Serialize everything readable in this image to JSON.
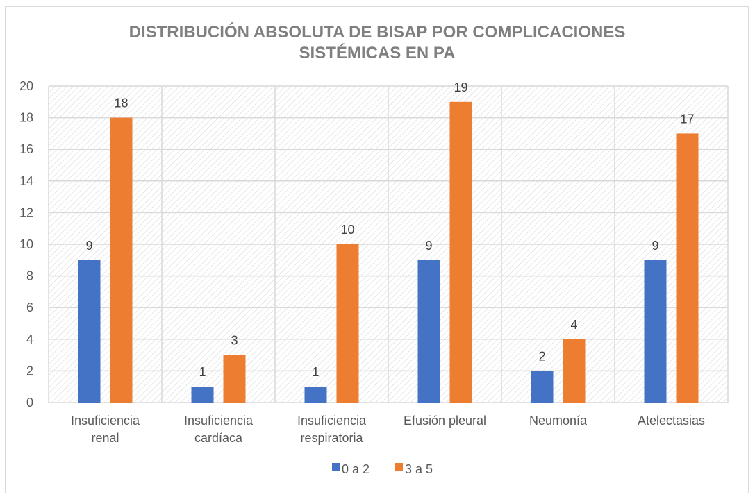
{
  "chart_data": {
    "type": "bar",
    "title": "DISTRIBUCIÓN ABSOLUTA DE BISAP POR COMPLICACIONES SISTÉMICAS EN PA",
    "title_lines": [
      "DISTRIBUCIÓN ABSOLUTA DE BISAP POR COMPLICACIONES",
      "SISTÉMICAS EN PA"
    ],
    "xlabel": "",
    "ylabel": "",
    "categories": [
      [
        "Insuficiencia",
        "renal"
      ],
      [
        "Insuficiencia",
        "cardíaca"
      ],
      [
        "Insuficiencia",
        "respiratoria"
      ],
      [
        "Efusión pleural"
      ],
      [
        "Neumonía"
      ],
      [
        "Atelectasias"
      ]
    ],
    "series": [
      {
        "name": "0 a 2",
        "color": "#4472c4",
        "values": [
          9,
          1,
          1,
          9,
          2,
          9
        ]
      },
      {
        "name": "3 a 5",
        "color": "#ed7d31",
        "values": [
          18,
          3,
          10,
          19,
          4,
          17
        ]
      }
    ],
    "ylim": [
      0,
      20
    ],
    "yticks": [
      0,
      2,
      4,
      6,
      8,
      10,
      12,
      14,
      16,
      18,
      20
    ],
    "grid": true,
    "data_labels": true,
    "legend_position": "bottom"
  }
}
